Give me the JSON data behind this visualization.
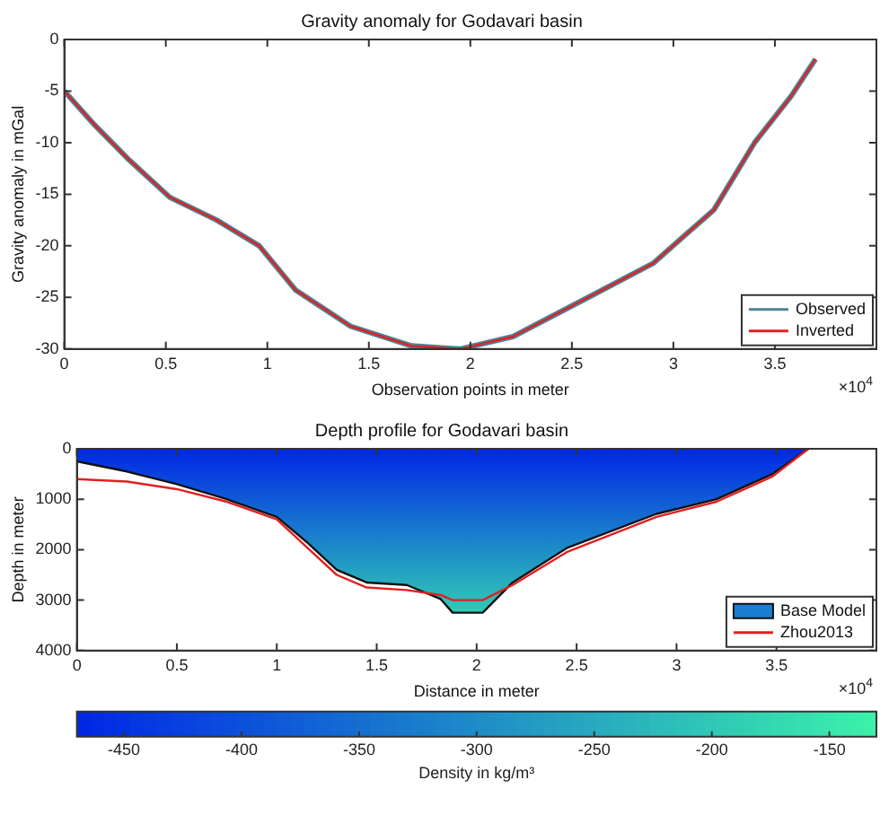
{
  "chart_data": [
    {
      "type": "line",
      "title": "Gravity anomaly for Godavari basin",
      "xlabel": "Observation points in meter",
      "ylabel": "Gravity anomaly in mGal",
      "x": [
        0,
        0.15,
        0.31,
        0.52,
        0.75,
        0.96,
        1.14,
        1.41,
        1.71,
        1.95,
        2.21,
        2.6,
        2.9,
        3.2,
        3.4,
        3.58,
        3.7
      ],
      "series": [
        {
          "name": "Observed",
          "color": "#4f8298",
          "values": [
            -5,
            -8.3,
            -11.5,
            -15.3,
            -17.5,
            -20,
            -24.3,
            -27.8,
            -29.7,
            -30,
            -28.8,
            -24.8,
            -21.7,
            -16.5,
            -10,
            -5.5,
            -1.9
          ]
        },
        {
          "name": "Inverted",
          "color": "#e02020",
          "values": [
            -5,
            -8.3,
            -11.5,
            -15.3,
            -17.5,
            -20,
            -24.3,
            -27.8,
            -29.7,
            -30,
            -28.8,
            -24.8,
            -21.7,
            -16.5,
            -10,
            -5.5,
            -1.9
          ]
        }
      ],
      "xlim": [
        0,
        4
      ],
      "xticks": [
        0,
        0.5,
        1,
        1.5,
        2,
        2.5,
        3,
        3.5
      ],
      "ylim": [
        -30,
        0
      ],
      "yticks": [
        -30,
        -25,
        -20,
        -15,
        -10,
        -5,
        0
      ],
      "annotations": [
        "×10$^{4}$"
      ],
      "legend": "bottom right",
      "grid": false
    },
    {
      "type": "area",
      "title": "Depth profile for Godavari basin",
      "xlabel": "Distance in meter",
      "ylabel": "Depth in meter",
      "clabel": "Density in kg/m³",
      "x": [
        0,
        0.25,
        0.5,
        0.75,
        1,
        1.15,
        1.3,
        1.45,
        1.65,
        1.82,
        1.88,
        2.03,
        2.18,
        2.45,
        2.9,
        3.2,
        3.48,
        3.66
      ],
      "series": [
        {
          "name": "Base Model",
          "color": "#1a7fd0",
          "values": [
            250,
            450,
            700,
            1000,
            1350,
            1850,
            2400,
            2650,
            2700,
            2980,
            3250,
            3250,
            2650,
            1970,
            1290,
            1000,
            500,
            0
          ]
        },
        {
          "name": "Zhou2013",
          "type": "line",
          "color": "#e02020",
          "values": [
            600,
            650,
            800,
            1050,
            1400,
            1950,
            2500,
            2750,
            2800,
            2900,
            3000,
            3000,
            2700,
            2050,
            1350,
            1050,
            550,
            0
          ]
        }
      ],
      "xlim": [
        0,
        4
      ],
      "xticks": [
        0,
        0.5,
        1,
        1.5,
        2,
        2.5,
        3,
        3.5
      ],
      "ylim": [
        4000,
        0
      ],
      "yticks": [
        0,
        1000,
        2000,
        3000,
        4000
      ],
      "clim": [
        -470,
        -130
      ],
      "cticks": [
        -450,
        -400,
        -350,
        -300,
        -250,
        -200,
        -150
      ],
      "annotations": [
        "×10$^{4}$"
      ],
      "legend": "bottom right",
      "grid": false
    }
  ]
}
